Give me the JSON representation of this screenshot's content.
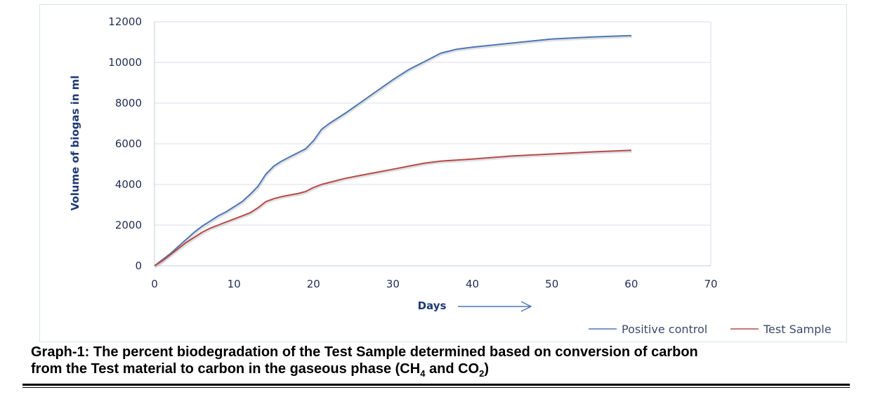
{
  "chart_data": {
    "type": "line",
    "xlabel": "Days",
    "ylabel": "Volume of biogas in ml",
    "xlim": [
      0,
      70
    ],
    "ylim": [
      0,
      12000
    ],
    "xticks": [
      0,
      10,
      20,
      30,
      40,
      50,
      60,
      70
    ],
    "yticks": [
      0,
      2000,
      4000,
      6000,
      8000,
      10000,
      12000
    ],
    "grid": true,
    "legend_position": "bottom-right",
    "series": [
      {
        "name": "Positive control",
        "color": "#4f76b3",
        "points": [
          [
            0,
            0
          ],
          [
            1,
            300
          ],
          [
            2,
            600
          ],
          [
            3,
            950
          ],
          [
            4,
            1300
          ],
          [
            5,
            1650
          ],
          [
            6,
            1950
          ],
          [
            7,
            2200
          ],
          [
            8,
            2450
          ],
          [
            9,
            2650
          ],
          [
            10,
            2900
          ],
          [
            11,
            3150
          ],
          [
            12,
            3500
          ],
          [
            13,
            3900
          ],
          [
            14,
            4500
          ],
          [
            15,
            4900
          ],
          [
            16,
            5150
          ],
          [
            17,
            5350
          ],
          [
            18,
            5550
          ],
          [
            19,
            5750
          ],
          [
            20,
            6150
          ],
          [
            21,
            6700
          ],
          [
            22,
            7000
          ],
          [
            24,
            7500
          ],
          [
            26,
            8050
          ],
          [
            28,
            8600
          ],
          [
            30,
            9150
          ],
          [
            32,
            9650
          ],
          [
            34,
            10050
          ],
          [
            36,
            10450
          ],
          [
            38,
            10650
          ],
          [
            40,
            10750
          ],
          [
            45,
            10950
          ],
          [
            50,
            11150
          ],
          [
            55,
            11250
          ],
          [
            60,
            11320
          ]
        ]
      },
      {
        "name": "Test Sample",
        "color": "#b84a47",
        "points": [
          [
            0,
            0
          ],
          [
            1,
            250
          ],
          [
            2,
            550
          ],
          [
            3,
            850
          ],
          [
            4,
            1150
          ],
          [
            5,
            1400
          ],
          [
            6,
            1650
          ],
          [
            7,
            1850
          ],
          [
            8,
            2000
          ],
          [
            9,
            2150
          ],
          [
            10,
            2300
          ],
          [
            11,
            2450
          ],
          [
            12,
            2600
          ],
          [
            13,
            2850
          ],
          [
            14,
            3150
          ],
          [
            15,
            3300
          ],
          [
            16,
            3400
          ],
          [
            17,
            3480
          ],
          [
            18,
            3550
          ],
          [
            19,
            3650
          ],
          [
            20,
            3850
          ],
          [
            21,
            4000
          ],
          [
            22,
            4100
          ],
          [
            24,
            4300
          ],
          [
            26,
            4450
          ],
          [
            28,
            4600
          ],
          [
            30,
            4750
          ],
          [
            32,
            4900
          ],
          [
            34,
            5050
          ],
          [
            36,
            5150
          ],
          [
            38,
            5200
          ],
          [
            40,
            5250
          ],
          [
            45,
            5400
          ],
          [
            50,
            5500
          ],
          [
            55,
            5600
          ],
          [
            60,
            5680
          ]
        ]
      }
    ]
  },
  "caption": {
    "line1": "Graph-1: The percent biodegradation of the Test Sample determined based on conversion of carbon",
    "line2_prefix": "from the Test material to carbon in the gaseous phase (CH",
    "sub1": "4",
    "middle": " and CO",
    "sub2": "2",
    "suffix": ")"
  }
}
